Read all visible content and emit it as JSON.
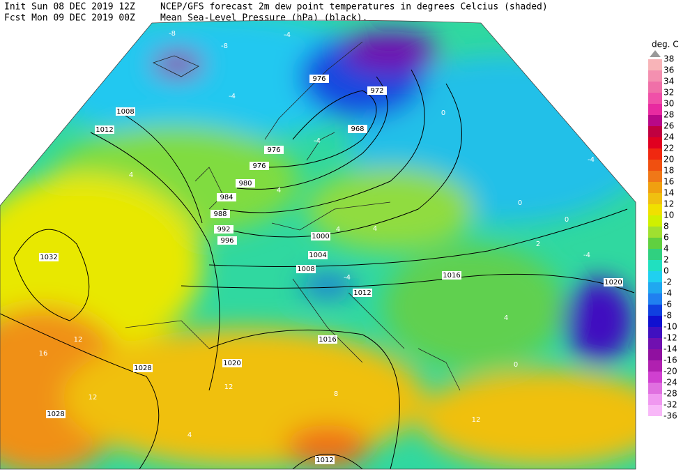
{
  "header": {
    "init": "Init  Sun 08 DEC 2019 12Z",
    "fcst": "Fcst Mon 09 DEC 2019 00Z",
    "line1": "NCEP/GFS forecast 2m dew point temperatures in degrees Celcius (shaded)",
    "line2": "Mean Sea-Level Pressure (hPa) (black)."
  },
  "legend": {
    "unit": "deg. C",
    "levels": [
      38,
      36,
      34,
      32,
      30,
      28,
      26,
      24,
      22,
      20,
      18,
      16,
      14,
      12,
      10,
      8,
      6,
      4,
      2,
      0,
      -2,
      -4,
      -6,
      -8,
      -10,
      -12,
      -14,
      -16,
      -20,
      -24,
      -28,
      -32,
      -36
    ],
    "colors": [
      "#f8b4b8",
      "#f490b0",
      "#f070a8",
      "#f050a8",
      "#e82aa0",
      "#b80888",
      "#c00040",
      "#e00020",
      "#f02810",
      "#f05010",
      "#f07818",
      "#f0a010",
      "#f0c010",
      "#f0e000",
      "#d0f000",
      "#a0e030",
      "#60d040",
      "#30d080",
      "#20e0c0",
      "#20d0f0",
      "#20a8f0",
      "#2080f0",
      "#1040e0",
      "#1010d0",
      "#4010c0",
      "#7010b0",
      "#9010a0",
      "#b020b0",
      "#d040d0",
      "#e070e0",
      "#f098f0",
      "#f8b8f8"
    ]
  },
  "isobars": [
    1008,
    1012,
    976,
    972,
    968,
    976,
    976,
    980,
    984,
    988,
    992,
    996,
    1000,
    1004,
    1008,
    1012,
    1016,
    1020,
    1032,
    1028,
    1020,
    1016,
    1028,
    1012
  ],
  "dewpoint_labels": [
    16,
    12,
    12,
    12,
    12,
    8,
    4,
    4,
    4,
    4,
    4,
    4,
    0,
    0,
    0,
    0,
    -4,
    -4,
    -4,
    -4,
    -4,
    -8,
    -8,
    -4,
    2
  ]
}
